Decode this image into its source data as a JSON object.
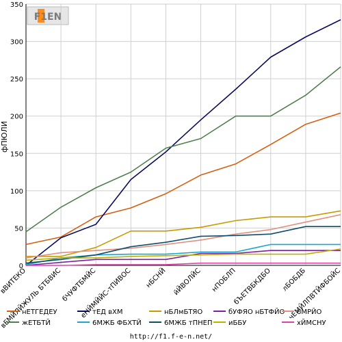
{
  "logo": {
    "text": "F1EN"
  },
  "footer": {
    "url": "http://f1.f-e-n.net/"
  },
  "chart_data": {
    "type": "line",
    "title": "",
    "xlabel": "",
    "ylabel": "фПЮЛИ",
    "ylim": [
      0,
      350
    ],
    "yticks": [
      0,
      50,
      100,
      150,
      200,
      250,
      300,
      350
    ],
    "grid": true,
    "legend_position": "bottom",
    "categories": [
      "вВИТЕКО",
      "вЕМЙЛЙЖУЛЬ БТБВИС",
      "бЧУФТБМЙС",
      "еНЙМЙЙС-тПИВОС",
      "нБСНЙ",
      "йЙВОЛЙС",
      "нПОБЛП",
      "бЪЕТВБКДБО",
      "лБОБДБ",
      "чЕМЙЛПВТЙФБОЙС"
    ],
    "series": [
      {
        "name": "нЕТГЕДЕУ",
        "color": "#d45f10",
        "values": [
          28,
          38,
          65,
          77,
          96,
          121,
          136,
          162,
          189,
          204
        ]
      },
      {
        "name": "тЕД вХМ",
        "color": "#0a0a5e",
        "values": [
          0,
          37,
          55,
          115,
          152,
          195,
          236,
          279,
          306,
          329
        ]
      },
      {
        "name": "нБЛмБТЯО",
        "color": "#c79a00",
        "values": [
          12,
          12,
          24,
          46,
          46,
          51,
          60,
          65,
          65,
          73
        ]
      },
      {
        "name": "бУФЯО нБТФЙО",
        "color": "#7b1ea2",
        "values": [
          0,
          4,
          8,
          8,
          8,
          16,
          16,
          20,
          20,
          20
        ]
      },
      {
        "name": "6МРЙО",
        "color": "#e09080",
        "values": [
          10,
          17,
          20,
          23,
          28,
          34,
          42,
          48,
          58,
          68
        ]
      },
      {
        "name": "жЕТБТЙ",
        "color": "#4f7f4f",
        "values": [
          45,
          78,
          104,
          125,
          157,
          170,
          200,
          200,
          228,
          266
        ]
      },
      {
        "name": "6МЖБ ФБХТЙ",
        "color": "#19a7cc",
        "values": [
          1,
          10,
          14,
          15,
          15,
          18,
          18,
          28,
          28,
          28
        ]
      },
      {
        "name": "6МЖБ тПНЕП",
        "color": "#0e4e6b",
        "values": [
          3,
          8,
          14,
          25,
          31,
          39,
          40,
          42,
          52,
          52
        ]
      },
      {
        "name": "иББУ",
        "color": "#bfae00",
        "values": [
          7,
          10,
          10,
          12,
          13,
          14,
          15,
          15,
          15,
          22
        ]
      },
      {
        "name": "хЙМСНУ",
        "color": "#e040a8",
        "values": [
          0,
          0,
          1,
          1,
          1,
          3,
          3,
          3,
          3,
          3
        ]
      }
    ]
  }
}
